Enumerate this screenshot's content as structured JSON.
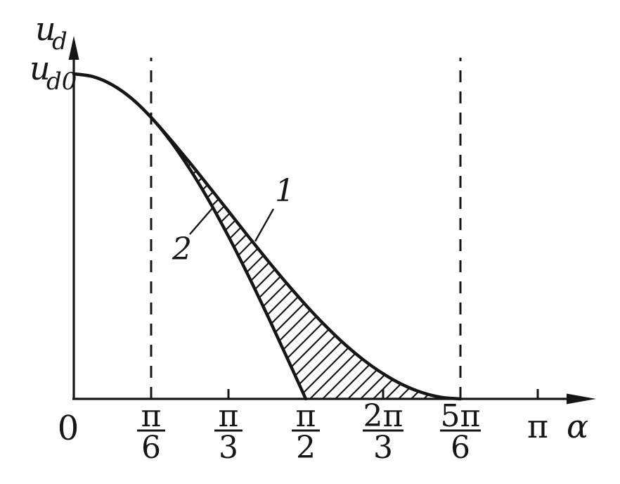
{
  "chart_data": {
    "type": "line",
    "title": "",
    "xlabel": "α",
    "ylabel": "u_d",
    "x_unit": "radians (multiples of π)",
    "xlim_pi": [
      0,
      1.12
    ],
    "ylim_ud0": [
      0,
      1.1
    ],
    "grid": "off",
    "legend": "numbered curve labels with leader lines",
    "labels": {
      "y_title_base": "u",
      "y_title_sub": "d",
      "y_intercept_base": "u",
      "y_intercept_sub": "d0",
      "origin": "0",
      "x_title": "α",
      "curve1": "1",
      "curve2": "2"
    },
    "x_ticks": [
      {
        "num": "π",
        "den": "6",
        "value_pi": 0.16667,
        "mark": "dashed-guide"
      },
      {
        "num": "π",
        "den": "3",
        "value_pi": 0.33333,
        "mark": "tick"
      },
      {
        "num": "π",
        "den": "2",
        "value_pi": 0.5,
        "mark": "none"
      },
      {
        "num": "2π",
        "den": "3",
        "value_pi": 0.66667,
        "mark": "tick"
      },
      {
        "num": "5π",
        "den": "6",
        "value_pi": 0.83333,
        "mark": "dashed-guide"
      },
      {
        "num": "π",
        "den": "",
        "value_pi": 1.0,
        "mark": "tick"
      }
    ],
    "series": [
      {
        "name": "curve 1",
        "label": "1",
        "x_pi": [
          0,
          0.0417,
          0.0833,
          0.125,
          0.16667,
          0.2083,
          0.25,
          0.2917,
          0.33333,
          0.375,
          0.4167,
          0.4583,
          0.5,
          0.5417,
          0.5833,
          0.625,
          0.66667,
          0.7083,
          0.75,
          0.7917,
          0.83333
        ],
        "u": [
          1,
          0.9914,
          0.9659,
          0.9239,
          0.866,
          0.7983,
          0.7268,
          0.6527,
          0.5774,
          0.502,
          0.4279,
          0.3564,
          0.2887,
          0.2259,
          0.1691,
          0.1193,
          0.0774,
          0.0439,
          0.0197,
          0.0049,
          0
        ]
      },
      {
        "name": "curve 2",
        "label": "2",
        "x_pi": [
          0,
          0.0417,
          0.0833,
          0.125,
          0.16667,
          0.2083,
          0.25,
          0.2917,
          0.33333,
          0.375,
          0.4167,
          0.4583,
          0.5
        ],
        "u": [
          1,
          0.9914,
          0.9659,
          0.9239,
          0.866,
          0.7934,
          0.7071,
          0.6088,
          0.5,
          0.3827,
          0.2588,
          0.1305,
          0
        ]
      }
    ],
    "hatched_region": "between curve 1 (upper) and curve 2 / x-axis (lower), from α=π/6 to α=5π/6, diagonal hatching",
    "ink_color": "#161616"
  }
}
